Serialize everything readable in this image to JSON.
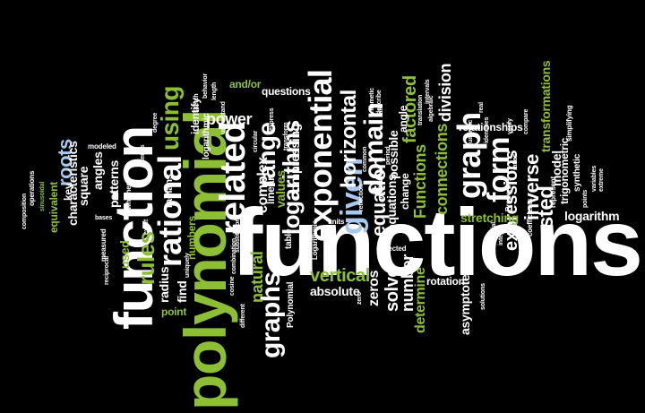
{
  "palette": {
    "background": "#000000",
    "white": "#ffffff",
    "green": "#8dbf35",
    "blue": "#a9c8ef"
  },
  "words": {
    "functions": "functions",
    "function": "function",
    "polynomial": "polynomial",
    "rational": "rational",
    "related": "related",
    "exponential": "exponential",
    "given": "given",
    "graph": "graph",
    "form": "form",
    "domain": "domain",
    "range": "range",
    "using": "using",
    "logarithms": "logarithms",
    "graphs": "graphs",
    "horizontal": "horizontal",
    "equation": "equation",
    "rules": "rules",
    "roots": "roots",
    "inverse": "inverse",
    "nested": "nested",
    "expressions": "expressions",
    "connections": "connections",
    "Functions": "Functions",
    "division": "division",
    "factored": "factored",
    "solve": "solve",
    "number": "number",
    "determine": "determine",
    "zeros": "zeros",
    "vertical": "vertical",
    "absolute": "absolute",
    "complex": "complex",
    "natural": "natural",
    "power": "power",
    "values": "values",
    "compressing": "compressing",
    "linear": "linear",
    "equations": "equations",
    "possible": "possible",
    "change": "change",
    "asymptotes": "asymptotes",
    "rotation": "rotation",
    "use": "use",
    "stretching": "stretching",
    "logarithm": "logarithm",
    "transformations": "transformations",
    "relationships": "relationships",
    "trigonometric": "trigonometric",
    "model": "model",
    "synthetic": "synthetic",
    "patterns": "patterns",
    "characteristics": "characteristics",
    "key": "key",
    "square": "square",
    "angles": "angles",
    "equivalent": "equivalent",
    "used": "used",
    "radius": "radius",
    "find": "find",
    "point": "point",
    "numbers": "numbers",
    "radians": "radians",
    "identify": "identify",
    "logarithmic": "logarithmic",
    "questions": "questions",
    "andor": "and/or",
    "table": "table",
    "tables": "tables",
    "Polynomial": "Polynomial",
    "angle": "angle",
    "measured": "measured",
    "modeled": "modeled",
    "whether": "whether",
    "operations": "operations",
    "sinusoidal": "sinusoidal",
    "Logarithmic": "Logarithmic",
    "units": "units",
    "expected": "expected",
    "factors": "factors",
    "Properties": "Properties",
    "coefficients": "coefficients",
    "represent": "represent",
    "simplifying": "simplifying",
    "points": "points",
    "degree": "degree",
    "cosine": "cosine",
    "different": "different",
    "quadratic": "quadratic",
    "variables": "variables",
    "circular": "circular",
    "express": "express",
    "transform": "transform",
    "understand": "understand",
    "behavior": "behavior",
    "practical": "practical",
    "translation": "translation",
    "intervals": "intervals",
    "real": "real",
    "describe": "describe",
    "terms": "terms",
    "bases": "bases",
    "common": "common",
    "substitution": "substitution",
    "combination": "combination",
    "uniquely": "uniquely",
    "period": "period",
    "extreme": "extreme",
    "identities": "identities",
    "length": "length",
    "algebraic": "algebraic",
    "arithmetic": "arithmetic",
    "rate": "rate",
    "sketch": "sketch",
    "partial": "partial",
    "integer": "integer",
    "solutions": "solutions",
    "zero": "zero",
    "ratios": "ratios",
    "compare": "compare",
    "verify": "verify",
    "composition": "composition",
    "reciprocal": "reciprocal",
    "reflection": "reflection",
    "exact": "exact"
  }
}
